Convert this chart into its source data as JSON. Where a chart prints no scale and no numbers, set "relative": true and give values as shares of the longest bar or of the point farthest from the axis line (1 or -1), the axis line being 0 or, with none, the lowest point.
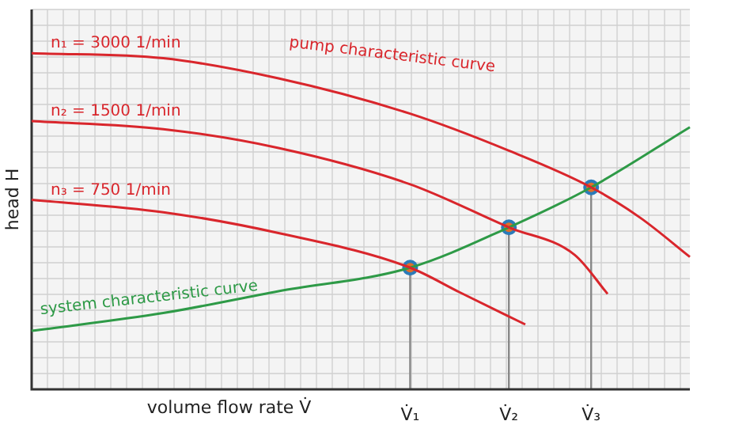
{
  "chart_data": {
    "type": "line",
    "relative": true,
    "xlabel": "volume flow rate V̇",
    "ylabel": "head H",
    "grid": true,
    "legend": false,
    "marker": "none",
    "categories": [
      null,
      null,
      null,
      null,
      null,
      null,
      null,
      null,
      null,
      null,
      null,
      null,
      null,
      null,
      null,
      null,
      null,
      null,
      null,
      null,
      null,
      null,
      null,
      "V̇₁",
      null,
      null,
      null,
      null,
      null,
      "V̇₂",
      null,
      null,
      null,
      null,
      "V̇₃",
      null,
      null,
      null,
      null,
      null,
      null
    ],
    "annotations": [
      "pump characteristic curve"
    ],
    "series": [
      {
        "name": "n₁ = 3000 1/min",
        "color": "#d9262c",
        "values": [
          1,
          null,
          null,
          null,
          null,
          null,
          null,
          null,
          0.985,
          null,
          null,
          null,
          null,
          null,
          null,
          0.925,
          null,
          null,
          null,
          null,
          null,
          null,
          null,
          0.82,
          null,
          null,
          null,
          null,
          null,
          0.71,
          null,
          null,
          null,
          null,
          0.601,
          null,
          null,
          0.51,
          null,
          null,
          0.394
        ]
      },
      {
        "name": "n₂ = 1500 1/min",
        "color": "#d9262c",
        "values": [
          0.798,
          null,
          null,
          null,
          null,
          null,
          null,
          null,
          0.774,
          null,
          null,
          null,
          null,
          null,
          null,
          0.718,
          null,
          null,
          null,
          null,
          null,
          null,
          null,
          0.61,
          null,
          null,
          null,
          null,
          null,
          0.482,
          null,
          null,
          null,
          0.4,
          null,
          0.284,
          null,
          null,
          null,
          null,
          null
        ]
      },
      {
        "name": "n₃ = 750 1/min",
        "color": "#d9262c",
        "values": [
          0.564,
          null,
          null,
          null,
          null,
          null,
          null,
          null,
          0.527,
          null,
          null,
          null,
          null,
          null,
          null,
          0.465,
          null,
          null,
          null,
          null,
          null,
          null,
          null,
          0.362,
          null,
          null,
          0.289,
          null,
          null,
          null,
          0.193,
          null,
          null,
          null,
          null,
          null,
          null,
          null,
          null,
          null,
          null
        ]
      },
      {
        "name": "system characteristic curve",
        "color": "#2e9a47",
        "values": [
          0.174,
          null,
          null,
          null,
          null,
          null,
          null,
          null,
          0.227,
          null,
          null,
          null,
          null,
          null,
          null,
          0.292,
          null,
          null,
          null,
          null,
          null,
          null,
          null,
          0.362,
          null,
          null,
          null,
          null,
          null,
          0.482,
          null,
          null,
          null,
          null,
          0.601,
          null,
          null,
          null,
          null,
          null,
          0.78
        ]
      },
      {
        "type": "lollipop",
        "color": "#2b7bb9",
        "marker": "circle",
        "values": [
          null,
          null,
          null,
          null,
          null,
          null,
          null,
          null,
          null,
          null,
          null,
          null,
          null,
          null,
          null,
          null,
          null,
          null,
          null,
          null,
          null,
          null,
          null,
          0.362,
          null,
          null,
          null,
          null,
          null,
          0.482,
          null,
          null,
          null,
          null,
          0.601,
          null,
          null,
          null,
          null,
          null,
          null
        ]
      }
    ]
  }
}
